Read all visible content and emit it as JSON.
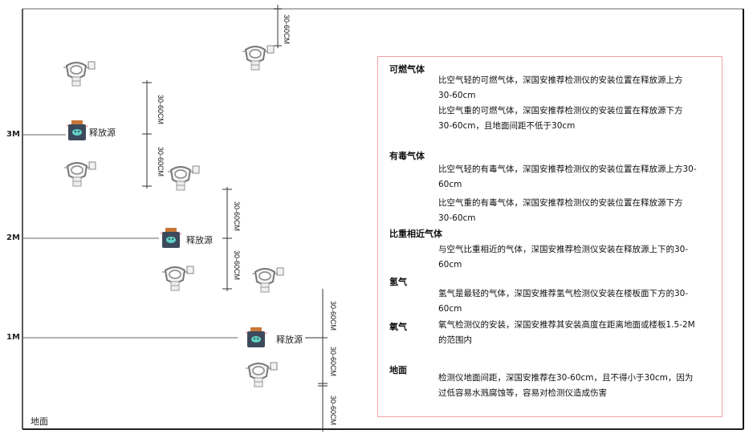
{
  "levels": {
    "m3": "3M",
    "m2": "2M",
    "m1": "1M",
    "ground": "地面"
  },
  "source_label": "释放源",
  "dimension_label": "30-60CM",
  "panel": {
    "sections": [
      {
        "heading": "可燃气体",
        "paragraphs": [
          "比空气轻的可燃气体，深国安推荐检测仪的安装位置在释放源上方30-60cm",
          "比空气重的可燃气体，深国安推荐检测仪的安装位置在释放源下方30-60cm，且地面间距不低于30cm"
        ]
      },
      {
        "heading": "有毒气体",
        "paragraphs": [
          "比空气轻的有毒气体，深国安推荐检测仪的安装位置在释放源上方30-60cm",
          "比空气重的有毒气体，深国安推荐检测仪的安装位置在释放源下方30-60cm"
        ]
      },
      {
        "heading": "比重相近气体",
        "paragraphs": [
          "与空气比重相近的气体，深国安推荐检测仪安装在释放源上下的30-60cm"
        ]
      },
      {
        "heading": "氢气",
        "paragraphs": [
          "氢气是最轻的气体，深国安推荐氢气检测仪安装在楼板面下方的30-60cm"
        ]
      },
      {
        "heading": "氧气",
        "paragraphs": [
          "氧气检测仪的安装，深国安推荐其安装高度在距离地面或楼板1.5-2M的范围内"
        ]
      },
      {
        "heading": "地面",
        "paragraphs": [
          "检测仪地面间距，深国安推荐在30-60cm，且不得小于30cm，因为过低容易水溅腐蚀等，容易对检测仪造成伤害"
        ]
      }
    ]
  },
  "colors": {
    "panel_border": "#f2a0a8",
    "source_body": "#3d4a5c",
    "source_cap": "#c8773a",
    "source_face": "#5fd0c8"
  }
}
